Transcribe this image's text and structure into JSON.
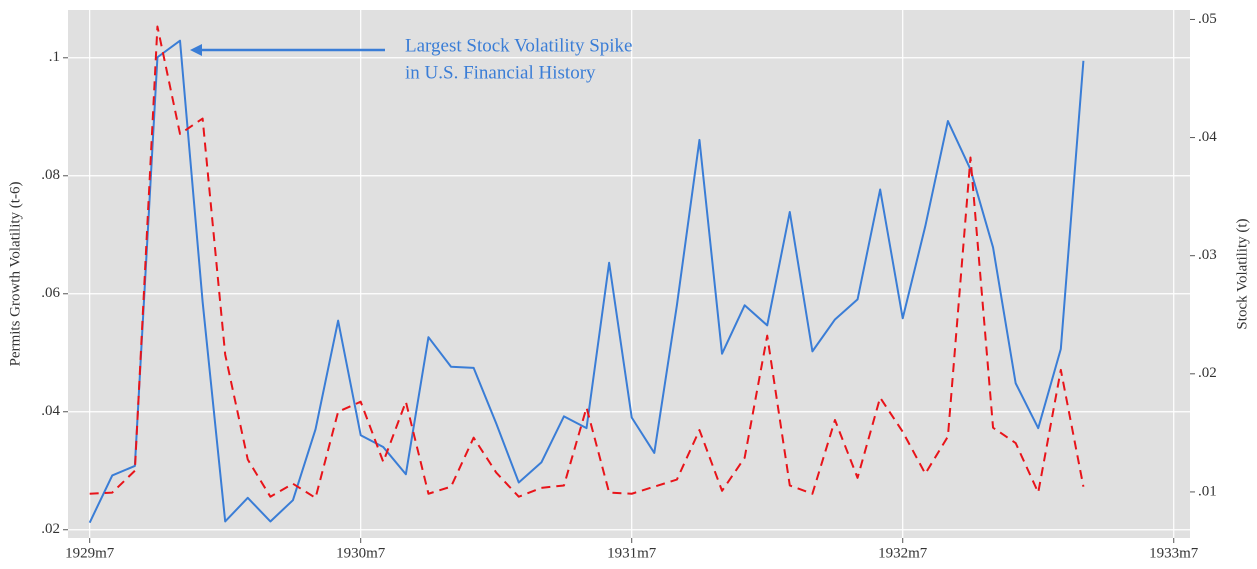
{
  "chart_data": {
    "type": "line",
    "ylabel": "Permits Growth Volatility (t-6)",
    "y2label": "Stock Volatility (t)",
    "annotation": [
      "Largest Stock Volatility Spike",
      "in U.S. Financial History"
    ],
    "x": [
      1929.5,
      1929.5833,
      1929.6667,
      1929.75,
      1929.8333,
      1929.9167,
      1930,
      1930.0833,
      1930.1667,
      1930.25,
      1930.3333,
      1930.4167,
      1930.5,
      1930.5833,
      1930.6667,
      1930.75,
      1930.8333,
      1930.9167,
      1931,
      1931.0833,
      1931.1667,
      1931.25,
      1931.3333,
      1931.4167,
      1931.5,
      1931.5833,
      1931.6667,
      1931.75,
      1931.8333,
      1931.9167,
      1932,
      1932.0833,
      1932.1667,
      1932.25,
      1932.3333,
      1932.4167,
      1932.5,
      1932.5833,
      1932.6667,
      1932.75,
      1932.8333,
      1932.9167,
      1933,
      1933.0833,
      1933.1667
    ],
    "series": [
      {
        "name": "Stock Volatility (t)",
        "color": "#3a7dd6",
        "axis": "y2",
        "dash": false,
        "values": [
          0.0074,
          0.0114,
          0.0122,
          0.0468,
          0.0482,
          0.0261,
          0.0075,
          0.0095,
          0.0075,
          0.0093,
          0.0153,
          0.0245,
          0.0148,
          0.0138,
          0.0115,
          0.0231,
          0.0206,
          0.0205,
          0.0158,
          0.0108,
          0.0125,
          0.0164,
          0.0154,
          0.0294,
          0.0163,
          0.0133,
          0.0258,
          0.0398,
          0.0217,
          0.0258,
          0.0241,
          0.0337,
          0.0219,
          0.0246,
          0.0263,
          0.0356,
          0.0247,
          0.0325,
          0.0414,
          0.0373,
          0.0307,
          0.0192,
          0.0154,
          0.0221,
          0.0465
        ]
      },
      {
        "name": "Permits Growth Volatility (t-6)",
        "color": "#e8141a",
        "axis": "y",
        "dash": true,
        "values": [
          0.0261,
          0.0263,
          0.03,
          0.1053,
          0.0871,
          0.0897,
          0.0497,
          0.0319,
          0.0256,
          0.0278,
          0.0254,
          0.04,
          0.0417,
          0.0315,
          0.0417,
          0.0261,
          0.0273,
          0.0356,
          0.0297,
          0.0256,
          0.0271,
          0.0275,
          0.0407,
          0.0263,
          0.0261,
          0.0273,
          0.0285,
          0.0369,
          0.0266,
          0.0322,
          0.0529,
          0.0275,
          0.0261,
          0.0386,
          0.0288,
          0.0424,
          0.0366,
          0.0295,
          0.0358,
          0.0831,
          0.0373,
          0.0347,
          0.0263,
          0.0471,
          0.0273
        ]
      }
    ],
    "xlim": [
      1929.42,
      1933.56
    ],
    "xticks": [
      {
        "value": 1929.5,
        "label": "1929m7"
      },
      {
        "value": 1930.5,
        "label": "1930m7"
      },
      {
        "value": 1931.5,
        "label": "1931m7"
      },
      {
        "value": 1932.5,
        "label": "1932m7"
      },
      {
        "value": 1933.5,
        "label": "1933m7"
      }
    ],
    "ylim": [
      0.0186,
      0.1081
    ],
    "yticks": [
      {
        "value": 0.02,
        "label": ".02"
      },
      {
        "value": 0.04,
        "label": ".04"
      },
      {
        "value": 0.06,
        "label": ".06"
      },
      {
        "value": 0.08,
        "label": ".08"
      },
      {
        "value": 0.1,
        "label": ".1"
      }
    ],
    "y2lim": [
      0.0061,
      0.0508
    ],
    "y2ticks": [
      {
        "value": 0.01,
        "label": ".01"
      },
      {
        "value": 0.02,
        "label": ".02"
      },
      {
        "value": 0.03,
        "label": ".03"
      },
      {
        "value": 0.04,
        "label": ".04"
      },
      {
        "value": 0.05,
        "label": ".05"
      }
    ],
    "grid": true
  }
}
